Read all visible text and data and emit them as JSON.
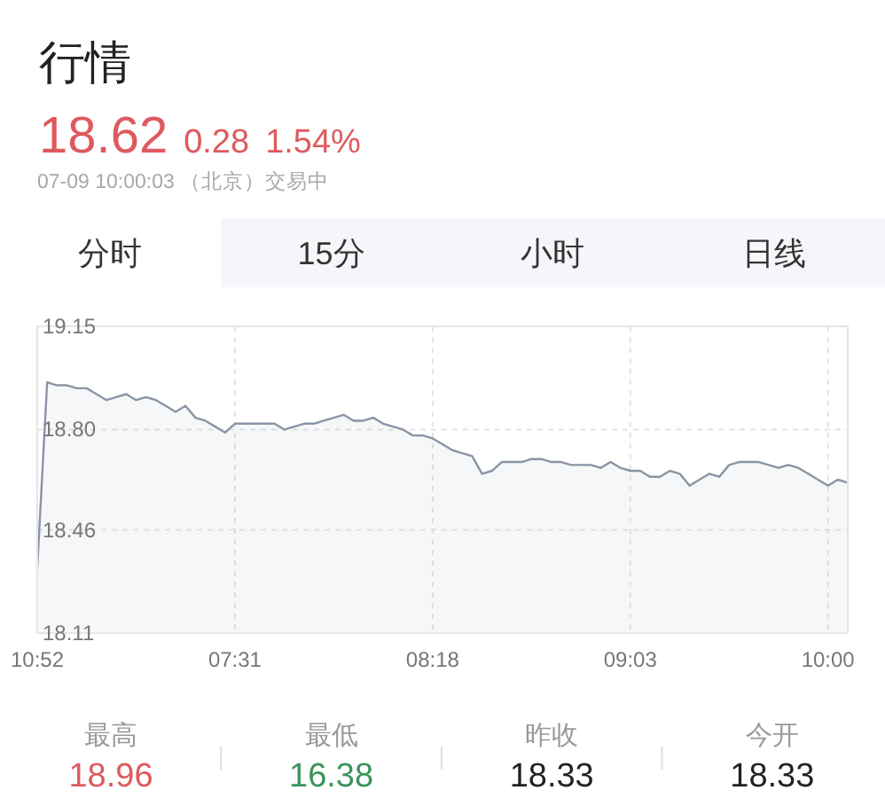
{
  "chart_data": {
    "type": "area",
    "title": "行情",
    "subtitle": "07-09 10:00:03 （北京）交易中",
    "annotations": [
      "18.62",
      "0.28",
      "1.54%",
      "分时",
      "15分",
      "小时",
      "日线",
      "最高",
      "18.96",
      "最低",
      "16.38",
      "昨收",
      "18.33",
      "今开",
      "18.33"
    ],
    "categories": [
      "10:52",
      null,
      null,
      null,
      null,
      null,
      null,
      null,
      null,
      null,
      null,
      null,
      null,
      null,
      null,
      null,
      null,
      null,
      null,
      null,
      "07:31",
      null,
      null,
      null,
      null,
      null,
      null,
      null,
      null,
      null,
      null,
      null,
      null,
      null,
      null,
      null,
      null,
      null,
      null,
      null,
      "08:18",
      null,
      null,
      null,
      null,
      null,
      null,
      null,
      null,
      null,
      null,
      null,
      null,
      null,
      null,
      null,
      null,
      null,
      null,
      null,
      "09:03",
      null,
      null,
      null,
      null,
      null,
      null,
      null,
      null,
      null,
      null,
      null,
      null,
      null,
      null,
      null,
      null,
      null,
      null,
      null,
      "10:00",
      null,
      null
    ],
    "values": [
      18.33,
      18.96,
      18.95,
      18.95,
      18.94,
      18.94,
      18.92,
      18.9,
      18.91,
      18.92,
      18.9,
      18.91,
      18.9,
      18.88,
      18.86,
      18.88,
      18.84,
      18.83,
      18.81,
      18.79,
      18.82,
      18.82,
      18.82,
      18.82,
      18.82,
      18.8,
      18.81,
      18.82,
      18.82,
      18.83,
      18.84,
      18.85,
      18.83,
      18.83,
      18.84,
      18.82,
      18.81,
      18.8,
      18.78,
      18.78,
      18.77,
      18.75,
      18.73,
      18.72,
      18.71,
      18.65,
      18.66,
      18.69,
      18.69,
      18.69,
      18.7,
      18.7,
      18.69,
      18.69,
      18.68,
      18.68,
      18.68,
      18.67,
      18.69,
      18.67,
      18.66,
      18.66,
      18.64,
      18.64,
      18.66,
      18.65,
      18.61,
      18.63,
      18.65,
      18.64,
      18.68,
      18.69,
      18.69,
      18.69,
      18.68,
      18.67,
      18.68,
      18.67,
      18.65,
      18.63,
      18.61,
      18.63,
      18.62
    ],
    "color": "#8a94a6",
    "ylim": [
      18.11,
      19.15
    ],
    "yticks": [
      18.11,
      18.46,
      {
        "value": 18.8,
        "label": "18.80"
      },
      19.15
    ],
    "grid": true
  }
}
